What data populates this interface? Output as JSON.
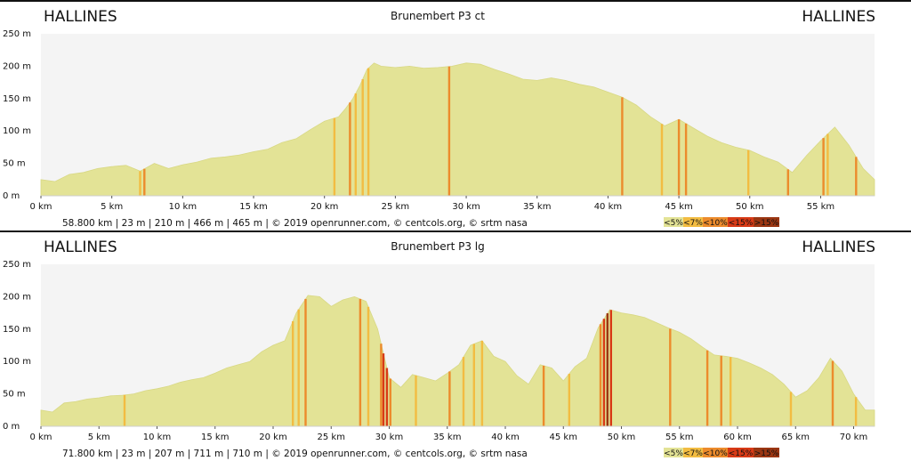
{
  "colors": {
    "lt5": "#e3e396",
    "lt7": "#f2bc42",
    "lt10": "#ec8b2c",
    "lt15": "#d83a16",
    "gt15": "#9b3612"
  },
  "legend": [
    "<5%",
    "<7%",
    "<10%",
    "<15%",
    ">15%"
  ],
  "chart_data": [
    {
      "type": "area",
      "title": "Brunembert P3 ct",
      "start_label": "HALLINES",
      "end_label": "HALLINES",
      "stats_line": "58.800 km |      23 m |     210 m |     466 m |      465 m | © 2019 openrunner.com, © centcols.org, © srtm nasa",
      "x_ticks": [
        "0 km",
        "5 km",
        "10 km",
        "15 km",
        "20 km",
        "25 km",
        "30 km",
        "35 km",
        "40 km",
        "45 km",
        "50 km",
        "55 km"
      ],
      "y_ticks": [
        "250 m",
        "200 m",
        "150 m",
        "100 m",
        "50 m",
        "0 m"
      ],
      "xlim": [
        0,
        58.8
      ],
      "ylim": [
        0,
        250
      ],
      "x": [
        0,
        1,
        2,
        3,
        4,
        5,
        6,
        7,
        8,
        9,
        10,
        11,
        12,
        13,
        14,
        15,
        16,
        17,
        18,
        19,
        20,
        21,
        21.5,
        22,
        22.5,
        23,
        23.5,
        24,
        25,
        26,
        27,
        28,
        29,
        30,
        31,
        32,
        33,
        34,
        35,
        36,
        37,
        38,
        39,
        40,
        41,
        42,
        43,
        44,
        45,
        46,
        47,
        48,
        49,
        50,
        51,
        52,
        53,
        54,
        55,
        56,
        57,
        58,
        58.8
      ],
      "y": [
        25,
        22,
        33,
        36,
        42,
        45,
        47,
        38,
        50,
        42,
        48,
        52,
        58,
        60,
        63,
        68,
        72,
        82,
        88,
        102,
        115,
        122,
        135,
        150,
        170,
        195,
        205,
        200,
        198,
        200,
        197,
        198,
        200,
        205,
        203,
        195,
        188,
        180,
        178,
        182,
        178,
        172,
        168,
        160,
        152,
        140,
        122,
        108,
        118,
        105,
        92,
        82,
        75,
        70,
        60,
        52,
        36,
        62,
        85,
        106,
        78,
        42,
        25
      ],
      "markers": [
        {
          "x": 7.0,
          "grade": "lt7"
        },
        {
          "x": 7.3,
          "grade": "lt10"
        },
        {
          "x": 20.7,
          "grade": "lt7"
        },
        {
          "x": 21.8,
          "grade": "lt10"
        },
        {
          "x": 22.2,
          "grade": "lt7"
        },
        {
          "x": 22.7,
          "grade": "lt7"
        },
        {
          "x": 23.1,
          "grade": "lt7"
        },
        {
          "x": 28.8,
          "grade": "lt10"
        },
        {
          "x": 41.0,
          "grade": "lt10"
        },
        {
          "x": 43.8,
          "grade": "lt7"
        },
        {
          "x": 45.0,
          "grade": "lt10"
        },
        {
          "x": 45.5,
          "grade": "lt10"
        },
        {
          "x": 49.9,
          "grade": "lt7"
        },
        {
          "x": 52.7,
          "grade": "lt10"
        },
        {
          "x": 55.2,
          "grade": "lt10"
        },
        {
          "x": 55.5,
          "grade": "lt7"
        },
        {
          "x": 57.5,
          "grade": "lt10"
        }
      ]
    },
    {
      "type": "area",
      "title": "Brunembert P3 lg",
      "start_label": "HALLINES",
      "end_label": "HALLINES",
      "stats_line": "71.800 km |      23 m |     207 m |     711 m |      710 m | © 2019 openrunner.com, © centcols.org, © srtm nasa",
      "x_ticks": [
        "0 km",
        "5 km",
        "10 km",
        "15 km",
        "20 km",
        "25 km",
        "30 km",
        "35 km",
        "40 km",
        "45 km",
        "50 km",
        "55 km",
        "60 km",
        "65 km",
        "70 km"
      ],
      "y_ticks": [
        "250 m",
        "200 m",
        "150 m",
        "100 m",
        "50 m",
        "0 m"
      ],
      "xlim": [
        0,
        71.8
      ],
      "ylim": [
        0,
        250
      ],
      "x": [
        0,
        1,
        2,
        3,
        4,
        5,
        6,
        7,
        8,
        9,
        10,
        11,
        12,
        13,
        14,
        15,
        16,
        17,
        18,
        19,
        20,
        21,
        22,
        23,
        24,
        25,
        26,
        27,
        28,
        29,
        30,
        31,
        32,
        33,
        34,
        35,
        36,
        37,
        38,
        39,
        40,
        41,
        42,
        43,
        44,
        45,
        46,
        47,
        48,
        49,
        50,
        51,
        52,
        53,
        54,
        55,
        56,
        57,
        58,
        59,
        60,
        61,
        62,
        63,
        64,
        65,
        66,
        67,
        68,
        69,
        70,
        71,
        71.8
      ],
      "y": [
        25,
        22,
        36,
        38,
        42,
        44,
        47,
        48,
        50,
        55,
        58,
        62,
        68,
        72,
        75,
        82,
        90,
        95,
        100,
        115,
        125,
        132,
        175,
        202,
        200,
        185,
        195,
        200,
        193,
        150,
        75,
        60,
        80,
        75,
        70,
        82,
        95,
        125,
        132,
        108,
        100,
        78,
        65,
        95,
        90,
        70,
        92,
        105,
        152,
        180,
        175,
        172,
        168,
        160,
        152,
        145,
        135,
        122,
        110,
        108,
        105,
        98,
        90,
        80,
        65,
        45,
        55,
        75,
        105,
        85,
        50,
        25,
        25
      ],
      "markers": [
        {
          "x": 7.2,
          "grade": "lt7"
        },
        {
          "x": 21.7,
          "grade": "lt7"
        },
        {
          "x": 22.2,
          "grade": "lt7"
        },
        {
          "x": 22.8,
          "grade": "lt10"
        },
        {
          "x": 27.5,
          "grade": "lt10"
        },
        {
          "x": 28.2,
          "grade": "lt7"
        },
        {
          "x": 29.3,
          "grade": "lt10"
        },
        {
          "x": 29.5,
          "grade": "lt15"
        },
        {
          "x": 29.8,
          "grade": "lt15"
        },
        {
          "x": 30.1,
          "grade": "lt10"
        },
        {
          "x": 32.3,
          "grade": "lt7"
        },
        {
          "x": 35.2,
          "grade": "lt10"
        },
        {
          "x": 36.4,
          "grade": "lt7"
        },
        {
          "x": 37.3,
          "grade": "lt7"
        },
        {
          "x": 38.0,
          "grade": "lt7"
        },
        {
          "x": 43.3,
          "grade": "lt10"
        },
        {
          "x": 45.5,
          "grade": "lt7"
        },
        {
          "x": 48.2,
          "grade": "lt10"
        },
        {
          "x": 48.5,
          "grade": "lt15"
        },
        {
          "x": 48.8,
          "grade": "gt15"
        },
        {
          "x": 49.1,
          "grade": "lt15"
        },
        {
          "x": 54.2,
          "grade": "lt10"
        },
        {
          "x": 57.4,
          "grade": "lt10"
        },
        {
          "x": 58.6,
          "grade": "lt10"
        },
        {
          "x": 59.4,
          "grade": "lt7"
        },
        {
          "x": 64.6,
          "grade": "lt7"
        },
        {
          "x": 68.2,
          "grade": "lt10"
        },
        {
          "x": 70.2,
          "grade": "lt7"
        }
      ]
    }
  ]
}
